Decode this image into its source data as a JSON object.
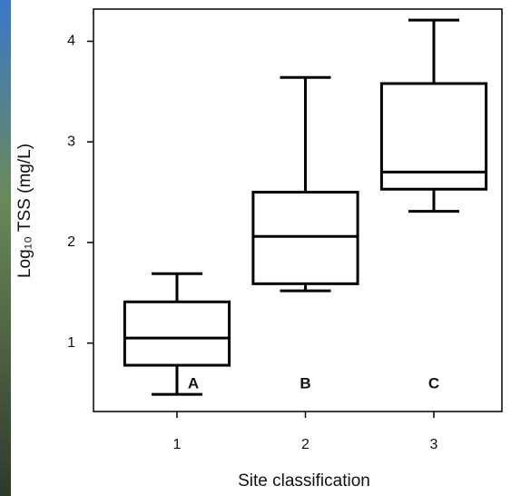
{
  "chart_data": {
    "type": "box",
    "xlabel": "Site classification",
    "ylabel": "Log₁₀ TSS (mg/L)",
    "categories": [
      "1",
      "2",
      "3"
    ],
    "boxes": [
      {
        "whislo": 0.49,
        "q1": 0.78,
        "med": 1.05,
        "q3": 1.41,
        "whishi": 1.69
      },
      {
        "whislo": 1.52,
        "q1": 1.59,
        "med": 2.06,
        "q3": 2.5,
        "whishi": 3.64
      },
      {
        "whislo": 2.31,
        "q1": 2.53,
        "med": 2.7,
        "q3": 3.58,
        "whishi": 4.21
      }
    ],
    "annotations": [
      "A",
      "B",
      "C"
    ],
    "xlim": [
      0.35,
      3.53
    ],
    "ylim": [
      0.32,
      4.32
    ],
    "yticks": [
      1,
      2,
      3,
      4
    ],
    "color": "#000000"
  }
}
